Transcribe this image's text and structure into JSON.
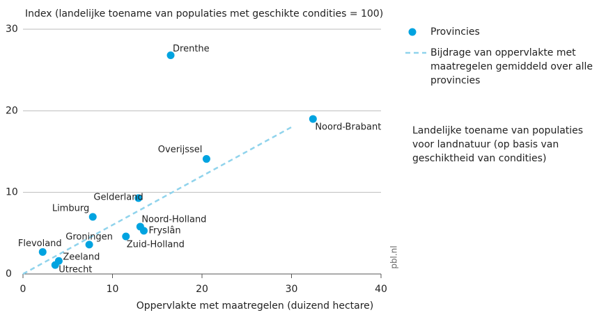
{
  "chart_data": {
    "type": "scatter",
    "y_label": "Index (landelijke toename van populaties met geschikte condities = 100)",
    "x_label": "Oppervlakte met maatregelen (duizend hectare)",
    "xlim": [
      0,
      40
    ],
    "ylim": [
      0,
      30
    ],
    "xticks": [
      0,
      10,
      20,
      30,
      40
    ],
    "yticks": [
      0,
      10,
      20,
      30
    ],
    "grid": true,
    "series": [
      {
        "name": "Provincies",
        "color": "#00a3e0",
        "labels": [
          "Drenthe",
          "Noord-Brabant",
          "Overijssel",
          "Gelderland",
          "Limburg",
          "Noord-Holland",
          "Fryslân",
          "Zuid-Holland",
          "Groningen",
          "Flevoland",
          "Zeeland",
          "Utrecht"
        ],
        "x": [
          16.5,
          32.4,
          20.5,
          12.9,
          7.8,
          13.1,
          13.5,
          11.5,
          7.4,
          2.2,
          4.0,
          3.6
        ],
        "values": [
          26.8,
          19.0,
          14.1,
          9.3,
          7.0,
          5.8,
          5.3,
          4.6,
          3.6,
          2.7,
          1.6,
          1.1
        ]
      },
      {
        "name": "Bijdrage van oppervlakte met maatregelen gemiddeld over alle provincies",
        "color": "#8fd3ec",
        "type": "line",
        "x": [
          0,
          30
        ],
        "values": [
          0,
          18
        ]
      }
    ],
    "note": "Landelijke toename van populaties voor landnatuur (op basis van geschiktheid van condities)",
    "source": "pbl.nl"
  }
}
